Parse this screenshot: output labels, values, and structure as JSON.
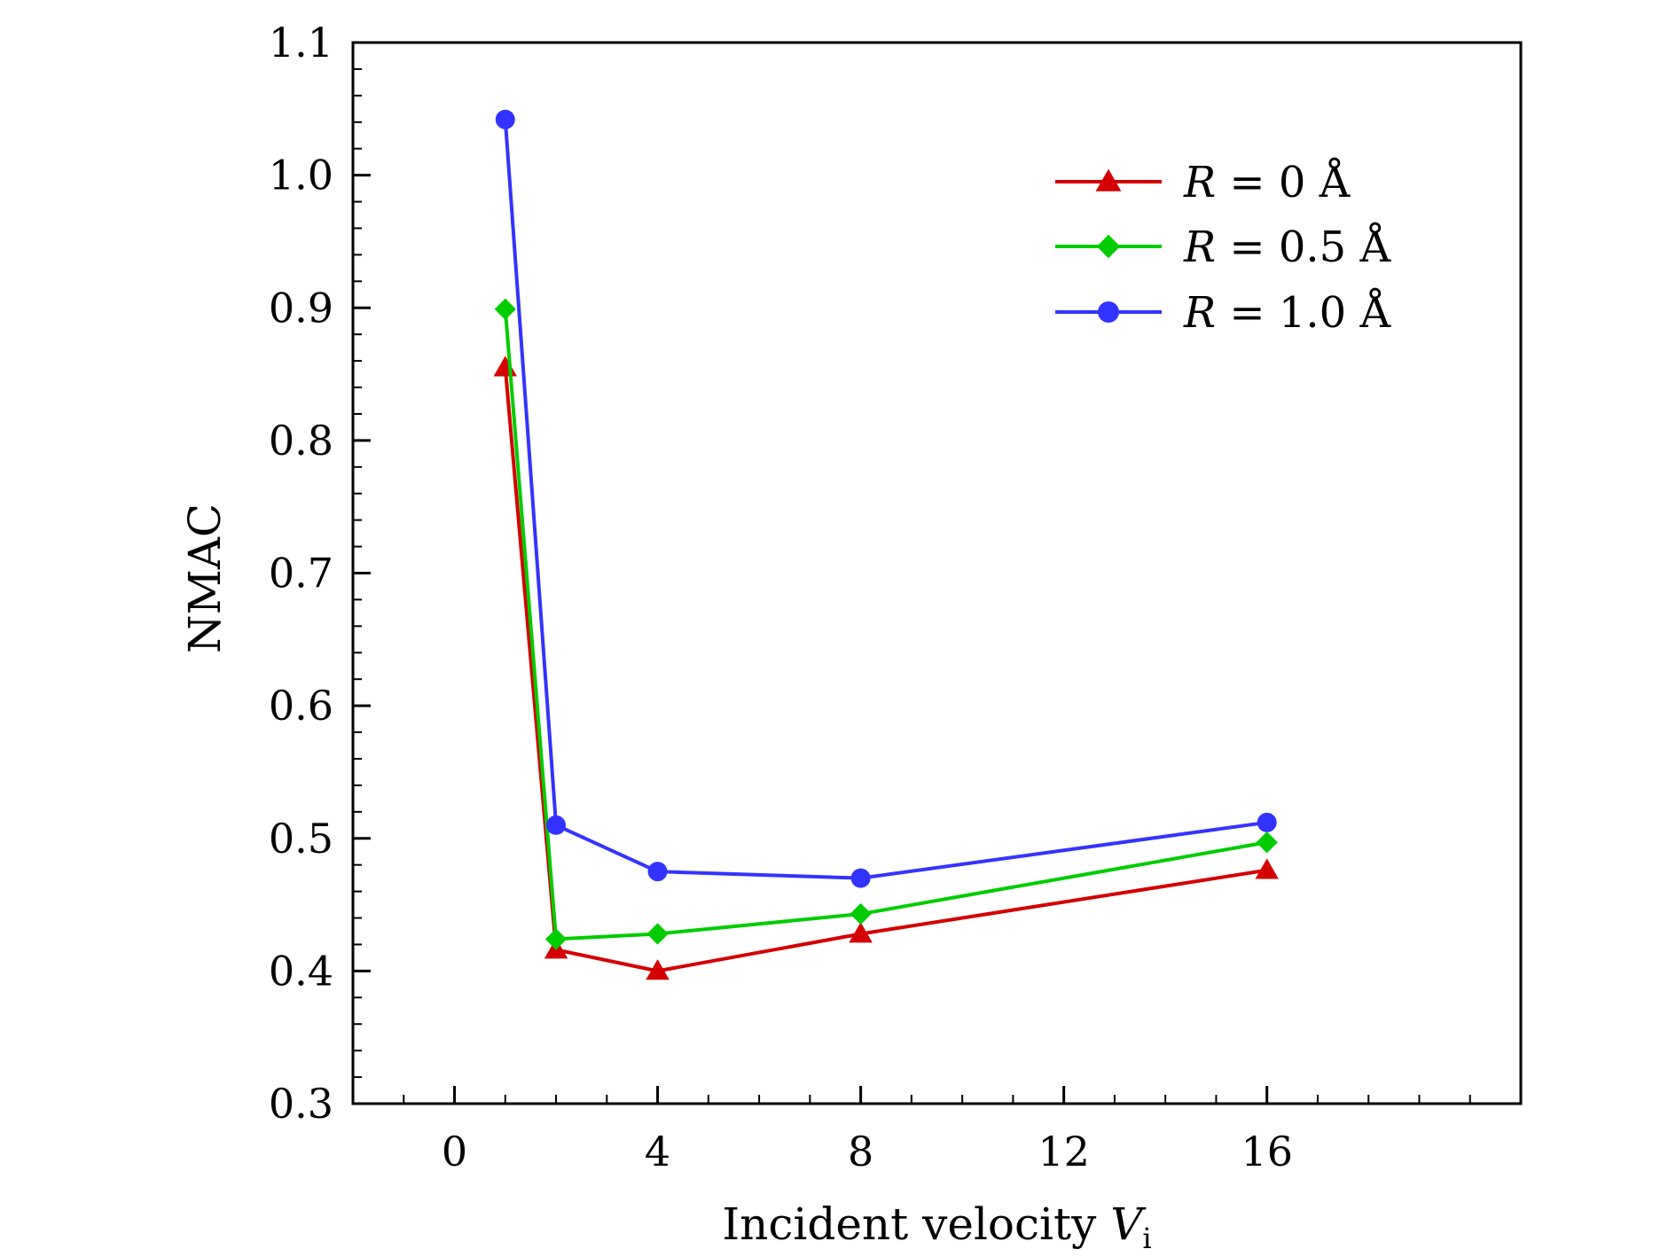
{
  "chart_data": {
    "type": "line",
    "title": "",
    "xlabel": "Incident velocity",
    "xlabel_var": "V",
    "xlabel_sub": "i",
    "ylabel": "NMAC",
    "xlim": [
      -2,
      21
    ],
    "ylim": [
      0.3,
      1.1
    ],
    "x_ticks": [
      0,
      4,
      8,
      12,
      16
    ],
    "x_tick_labels": [
      "0",
      "4",
      "8",
      "12",
      "16"
    ],
    "y_ticks": [
      0.3,
      0.4,
      0.5,
      0.6,
      0.7,
      0.8,
      0.9,
      1.0,
      1.1
    ],
    "y_tick_labels": [
      "0.3",
      "0.4",
      "0.5",
      "0.6",
      "0.7",
      "0.8",
      "0.9",
      "1.0",
      "1.1"
    ],
    "grid": false,
    "legend_position": "top-right",
    "x": [
      1,
      2,
      4,
      8,
      16
    ],
    "series": [
      {
        "name": "R = 0 Å",
        "legend_var": "R",
        "legend_rest": " = 0 Å",
        "marker": "triangle",
        "color": "#d40000",
        "values": [
          0.855,
          0.416,
          0.4,
          0.428,
          0.476
        ]
      },
      {
        "name": "R = 0.5 Å",
        "legend_var": "R",
        "legend_rest": " = 0.5 Å",
        "marker": "diamond",
        "color": "#00cc00",
        "values": [
          0.899,
          0.424,
          0.428,
          0.443,
          0.497
        ]
      },
      {
        "name": "R = 1.0 Å",
        "legend_var": "R",
        "legend_rest": " = 1.0 Å",
        "marker": "circle",
        "color": "#3333ff",
        "values": [
          1.042,
          0.51,
          0.475,
          0.47,
          0.512
        ]
      }
    ]
  }
}
